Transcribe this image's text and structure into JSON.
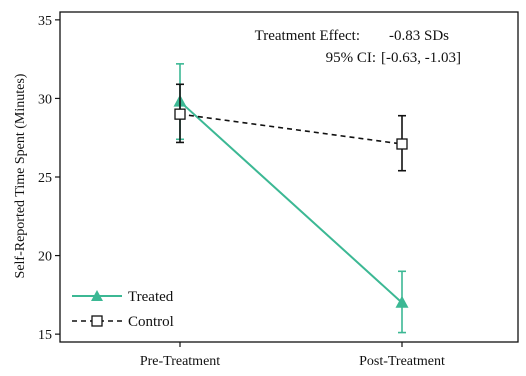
{
  "chart_data": {
    "type": "line",
    "title": "",
    "xlabel": "",
    "ylabel": "Self-Reported Time Spent (Minutes)",
    "categories": [
      "Pre-Treatment",
      "Post-Treatment"
    ],
    "ylim": [
      14.5,
      35.5
    ],
    "yticks": [
      15,
      20,
      25,
      30,
      35
    ],
    "grid": false,
    "legend_position": "bottom-left",
    "series": [
      {
        "name": "Treated",
        "values": [
          29.8,
          17.0
        ],
        "ci_low": [
          27.4,
          15.1
        ],
        "ci_high": [
          32.2,
          19.0
        ],
        "color": "#3cb894",
        "marker": "filled-triangle",
        "line_style": "solid"
      },
      {
        "name": "Control",
        "values": [
          29.0,
          27.1
        ],
        "ci_low": [
          27.2,
          25.4
        ],
        "ci_high": [
          30.9,
          28.9
        ],
        "color": "#111111",
        "marker": "open-square",
        "line_style": "dashed"
      }
    ],
    "annotations": [
      {
        "label": "Treatment Effect:",
        "value": "-0.83 SDs"
      },
      {
        "label": "95% CI:",
        "value": "[-0.63, -1.03]"
      }
    ]
  }
}
